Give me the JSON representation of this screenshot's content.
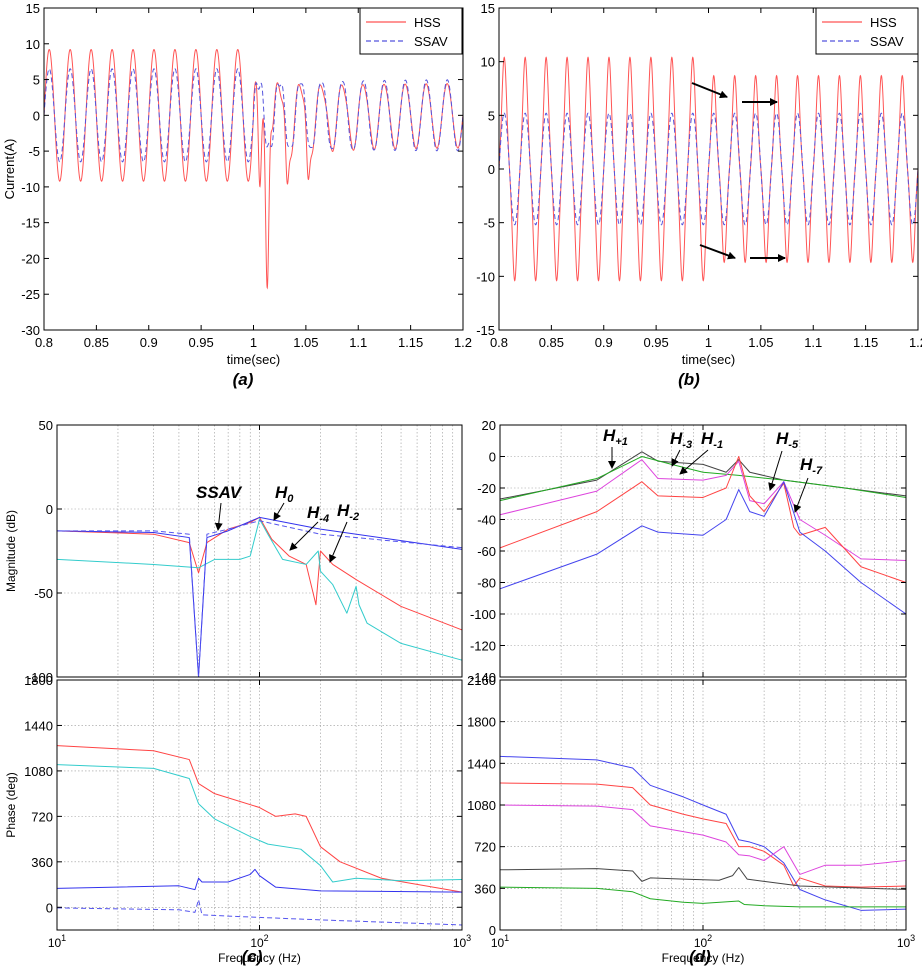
{
  "chart_data": [
    {
      "id": "a",
      "type": "line",
      "caption": "(a)",
      "xlabel": "time(sec)",
      "ylabel": "Current(A)",
      "xlim": [
        0.8,
        1.2
      ],
      "ylim": [
        -30,
        15
      ],
      "xticks": [
        0.8,
        0.85,
        0.9,
        0.95,
        1,
        1.05,
        1.1,
        1.15,
        1.2
      ],
      "xtick_labels": [
        "0.8",
        "0.85",
        "0.9",
        "0.95",
        "1",
        "1.05",
        "1.1",
        "1.15",
        "1.2"
      ],
      "yticks": [
        -30,
        -25,
        -20,
        -15,
        -10,
        -5,
        0,
        5,
        10,
        15
      ],
      "ytick_labels": [
        "-30",
        "-25",
        "-20",
        "-15",
        "-10",
        "-5",
        "0",
        "5",
        "10",
        "15"
      ],
      "grid": false,
      "legend": "top-right",
      "series": [
        {
          "name": "HSS",
          "color": "#ff5555",
          "dash": "solid",
          "pre_amplitude": 9.2,
          "dip_min": -26,
          "dip_time": 1.013,
          "post_amplitude": 4.5,
          "frequency_hz": 50
        },
        {
          "name": "SSAV",
          "color": "#5555dd",
          "dash": "dashed",
          "pre_amplitude": 6.5,
          "post_amplitude": 5.0,
          "frequency_hz": 50
        }
      ]
    },
    {
      "id": "b",
      "type": "line",
      "caption": "(b)",
      "xlabel": "time(sec)",
      "ylabel": "",
      "xlim": [
        0.8,
        1.2
      ],
      "ylim": [
        -15,
        15
      ],
      "xticks": [
        0.8,
        0.85,
        0.9,
        0.95,
        1,
        1.05,
        1.1,
        1.15,
        1.2
      ],
      "xtick_labels": [
        "0.8",
        "0.85",
        "0.9",
        "0.95",
        "1",
        "1.05",
        "1.1",
        "1.15",
        "1.2"
      ],
      "yticks": [
        -15,
        -10,
        -5,
        0,
        5,
        10,
        15
      ],
      "ytick_labels": [
        "-15",
        "-10",
        "-5",
        "0",
        "5",
        "10",
        "15"
      ],
      "grid": false,
      "legend": "top-right",
      "series": [
        {
          "name": "HSS",
          "color": "#ff5555",
          "dash": "solid",
          "pre_amplitude": 9.2,
          "post_amplitude": 7.5,
          "frequency_hz": 50
        },
        {
          "name": "SSAV",
          "color": "#5555dd",
          "dash": "dashed",
          "pre_amplitude": 5.2,
          "post_amplitude": 5.2,
          "frequency_hz": 50
        }
      ]
    },
    {
      "id": "c-mag",
      "type": "line",
      "ylabel": "Magnitude (dB)",
      "xscale": "log",
      "xlim": [
        10,
        1000
      ],
      "ylim": [
        -100,
        50
      ],
      "yticks": [
        -100,
        -50,
        0,
        50
      ],
      "ytick_labels": [
        "-100",
        "-50",
        "0",
        "50"
      ],
      "grid": true,
      "series": [
        {
          "color": "#ff4444",
          "dash": "solid",
          "x": [
            10,
            30,
            45,
            50,
            55,
            70,
            90,
            100,
            115,
            140,
            170,
            190,
            200,
            230,
            300,
            500,
            1000
          ],
          "y": [
            -13,
            -15,
            -20,
            -38,
            -20,
            -12,
            -8,
            -5,
            -18,
            -28,
            -33,
            -57,
            -25,
            -33,
            -42,
            -58,
            -72
          ]
        },
        {
          "color": "#33cccc",
          "dash": "solid",
          "x": [
            10,
            30,
            50,
            60,
            80,
            90,
            100,
            110,
            130,
            170,
            195,
            200,
            230,
            270,
            300,
            310,
            340,
            500,
            1000
          ],
          "y": [
            -30,
            -33,
            -35,
            -30,
            -30,
            -28,
            -6,
            -15,
            -30,
            -33,
            -25,
            -37,
            -45,
            -62,
            -46,
            -57,
            -68,
            -80,
            -90
          ]
        },
        {
          "color": "#3333ee",
          "dash": "solid",
          "x": [
            10,
            30,
            45,
            50,
            55,
            70,
            100,
            200,
            1000
          ],
          "y": [
            -13,
            -14,
            -17,
            -100,
            -17,
            -13,
            -5,
            -12,
            -24
          ]
        },
        {
          "color": "#5555ee",
          "dash": "dashed",
          "x": [
            10,
            30,
            45,
            50,
            55,
            70,
            100,
            200,
            1000
          ],
          "y": [
            -13,
            -13,
            -15,
            -100,
            -15,
            -12,
            -7,
            -15,
            -23
          ]
        }
      ],
      "annotations": [
        {
          "label": "SSAV",
          "sub": ""
        },
        {
          "label": "H",
          "sub": "0"
        },
        {
          "label": "H",
          "sub": "-4"
        },
        {
          "label": "H",
          "sub": "-2"
        }
      ]
    },
    {
      "id": "c-phase",
      "type": "line",
      "caption": "(c)",
      "xlabel": "Frequency  (Hz)",
      "ylabel": "Phase (deg)",
      "xscale": "log",
      "xlim": [
        10,
        1000
      ],
      "ylim": [
        -180,
        1800
      ],
      "xtick_labels": [
        "10",
        "10",
        "10"
      ],
      "xtick_exponents": [
        "1",
        "2",
        "3"
      ],
      "yticks": [
        0,
        360,
        720,
        1080,
        1440,
        1800
      ],
      "ytick_labels": [
        "0",
        "360",
        "720",
        "1080",
        "1440",
        "1800"
      ],
      "grid": true,
      "series": [
        {
          "color": "#ff4444",
          "dash": "solid",
          "x": [
            10,
            30,
            45,
            50,
            60,
            100,
            120,
            150,
            170,
            200,
            250,
            400,
            1000
          ],
          "y": [
            1280,
            1240,
            1170,
            980,
            900,
            790,
            720,
            740,
            720,
            480,
            360,
            230,
            120
          ]
        },
        {
          "color": "#33cccc",
          "dash": "solid",
          "x": [
            10,
            30,
            45,
            50,
            60,
            90,
            110,
            160,
            200,
            230,
            300,
            500,
            1000
          ],
          "y": [
            1130,
            1100,
            1020,
            820,
            700,
            560,
            500,
            460,
            330,
            200,
            230,
            210,
            220
          ]
        },
        {
          "color": "#3333ee",
          "dash": "solid",
          "x": [
            10,
            40,
            48,
            50,
            52,
            70,
            90,
            95,
            100,
            120,
            200,
            1000
          ],
          "y": [
            150,
            170,
            140,
            230,
            200,
            200,
            260,
            300,
            250,
            160,
            130,
            120
          ]
        },
        {
          "color": "#5555ee",
          "dash": "dashed",
          "x": [
            10,
            40,
            48,
            50,
            52,
            70,
            200,
            1000
          ],
          "y": [
            -5,
            -20,
            -40,
            60,
            -60,
            -70,
            -100,
            -140
          ]
        }
      ]
    },
    {
      "id": "d-mag",
      "type": "line",
      "xscale": "log",
      "xlim": [
        10,
        1000
      ],
      "ylim": [
        -140,
        20
      ],
      "yticks": [
        -140,
        -120,
        -100,
        -80,
        -60,
        -40,
        -20,
        0,
        20
      ],
      "ytick_labels": [
        "-140",
        "-120",
        "-100",
        "-80",
        "-60",
        "-40",
        "-20",
        "0",
        "20"
      ],
      "grid": true,
      "series": [
        {
          "color": "#444444",
          "dash": "solid",
          "x": [
            10,
            30,
            50,
            60,
            100,
            130,
            150,
            170,
            250,
            500,
            1000
          ],
          "y": [
            -27,
            -15,
            3,
            -3,
            -5,
            -10,
            -2,
            -10,
            -15,
            -20,
            -25
          ]
        },
        {
          "color": "#22aa22",
          "dash": "solid",
          "x": [
            10,
            30,
            50,
            70,
            100,
            150,
            250,
            500,
            1000
          ],
          "y": [
            -28,
            -14,
            0,
            -5,
            -10,
            -12,
            -15,
            -20,
            -26
          ]
        },
        {
          "color": "#dd44dd",
          "dash": "solid",
          "x": [
            10,
            30,
            50,
            60,
            100,
            130,
            150,
            170,
            200,
            250,
            300,
            400,
            600,
            1000
          ],
          "y": [
            -37,
            -22,
            -2,
            -14,
            -15,
            -12,
            -3,
            -28,
            -30,
            -16,
            -40,
            -50,
            -65,
            -66
          ]
        },
        {
          "color": "#ff4444",
          "dash": "solid",
          "x": [
            10,
            30,
            50,
            60,
            100,
            130,
            150,
            170,
            200,
            250,
            280,
            300,
            400,
            600,
            1000
          ],
          "y": [
            -58,
            -35,
            -16,
            -25,
            -26,
            -20,
            0,
            -25,
            -35,
            -17,
            -45,
            -50,
            -45,
            -70,
            -80
          ]
        },
        {
          "color": "#4444ee",
          "dash": "solid",
          "x": [
            10,
            30,
            50,
            60,
            100,
            130,
            150,
            170,
            200,
            250,
            300,
            400,
            600,
            1000
          ],
          "y": [
            -84,
            -62,
            -44,
            -48,
            -50,
            -40,
            -21,
            -35,
            -38,
            -16,
            -48,
            -60,
            -80,
            -100
          ]
        }
      ],
      "annotations": [
        {
          "label": "H",
          "sub": "+1"
        },
        {
          "label": "H",
          "sub": "-3"
        },
        {
          "label": "H",
          "sub": "-1"
        },
        {
          "label": "H",
          "sub": "-5"
        },
        {
          "label": "H",
          "sub": "-7"
        }
      ]
    },
    {
      "id": "d-phase",
      "type": "line",
      "caption": "(d)",
      "xlabel": "Frequency  (Hz)",
      "xscale": "log",
      "xlim": [
        10,
        1000
      ],
      "ylim": [
        0,
        2160
      ],
      "xtick_labels": [
        "10",
        "10",
        "10"
      ],
      "xtick_exponents": [
        "1",
        "2",
        "3"
      ],
      "yticks": [
        0,
        360,
        720,
        1080,
        1440,
        1800,
        2160
      ],
      "ytick_labels": [
        "0",
        "360",
        "720",
        "1080",
        "1440",
        "1800",
        "2160"
      ],
      "grid": true,
      "series": [
        {
          "color": "#4444ee",
          "dash": "solid",
          "x": [
            10,
            30,
            45,
            55,
            80,
            100,
            130,
            150,
            170,
            200,
            250,
            300,
            400,
            600,
            1000
          ],
          "y": [
            1500,
            1470,
            1400,
            1250,
            1150,
            1080,
            1000,
            780,
            760,
            720,
            580,
            350,
            260,
            170,
            180
          ]
        },
        {
          "color": "#ff4444",
          "dash": "solid",
          "x": [
            10,
            30,
            45,
            55,
            80,
            100,
            130,
            150,
            170,
            200,
            250,
            280,
            300,
            400,
            600,
            1000
          ],
          "y": [
            1270,
            1260,
            1230,
            1080,
            1000,
            960,
            920,
            720,
            720,
            680,
            560,
            380,
            450,
            380,
            370,
            380
          ]
        },
        {
          "color": "#dd44dd",
          "dash": "solid",
          "x": [
            10,
            30,
            45,
            55,
            80,
            100,
            130,
            150,
            170,
            200,
            250,
            300,
            400,
            600,
            1000
          ],
          "y": [
            1080,
            1070,
            1040,
            900,
            850,
            820,
            760,
            650,
            640,
            600,
            720,
            480,
            560,
            560,
            600
          ]
        },
        {
          "color": "#444444",
          "dash": "solid",
          "x": [
            10,
            30,
            45,
            50,
            55,
            80,
            120,
            140,
            150,
            165,
            200,
            300,
            1000
          ],
          "y": [
            520,
            530,
            510,
            420,
            450,
            440,
            430,
            470,
            540,
            440,
            420,
            380,
            350
          ]
        },
        {
          "color": "#22aa22",
          "dash": "solid",
          "x": [
            10,
            30,
            45,
            55,
            80,
            100,
            150,
            160,
            200,
            300,
            600,
            1000
          ],
          "y": [
            370,
            360,
            330,
            270,
            240,
            230,
            250,
            220,
            210,
            200,
            200,
            200
          ]
        }
      ]
    }
  ]
}
